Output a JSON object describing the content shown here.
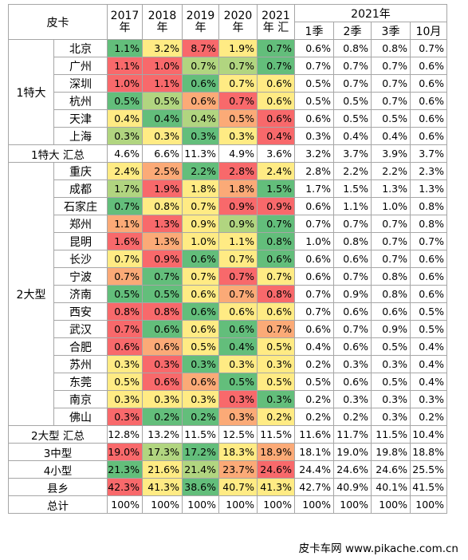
{
  "header": {
    "corner": "皮卡",
    "years": [
      "2017",
      "2018",
      "2019",
      "2020",
      "2021"
    ],
    "year_suffix": "年",
    "total_suffix": "汇",
    "year2021": "2021年",
    "periods": [
      "1季",
      "2季",
      "3季",
      "10月"
    ]
  },
  "colors": {
    "red": "#f8696b",
    "orange": "#fbaa77",
    "yellow": "#ffeb84",
    "lightgreen": "#b1d580",
    "green": "#63be7b"
  },
  "groups": [
    {
      "name": "1特大",
      "cities": [
        {
          "name": "北京",
          "years": [
            "1.1%",
            "3.2%",
            "8.7%",
            "1.9%",
            "0.7%"
          ],
          "colors": [
            "g",
            "y",
            "r",
            "y",
            "g"
          ],
          "periods": [
            "0.6%",
            "0.8%",
            "0.8%",
            "0.7%"
          ]
        },
        {
          "name": "广州",
          "years": [
            "1.1%",
            "1.0%",
            "0.7%",
            "0.7%",
            "0.7%"
          ],
          "colors": [
            "r",
            "r",
            "lg",
            "lg",
            "g"
          ],
          "periods": [
            "0.7%",
            "0.7%",
            "0.7%",
            "0.6%"
          ]
        },
        {
          "name": "深圳",
          "years": [
            "1.0%",
            "1.1%",
            "0.6%",
            "0.7%",
            "0.6%"
          ],
          "colors": [
            "r",
            "r",
            "g",
            "y",
            "y"
          ],
          "periods": [
            "0.5%",
            "0.7%",
            "0.7%",
            "0.6%"
          ]
        },
        {
          "name": "杭州",
          "years": [
            "0.5%",
            "0.5%",
            "0.6%",
            "0.7%",
            "0.6%"
          ],
          "colors": [
            "g",
            "lg",
            "o",
            "r",
            "y"
          ],
          "periods": [
            "0.5%",
            "0.5%",
            "0.7%",
            "0.6%"
          ]
        },
        {
          "name": "天津",
          "years": [
            "0.4%",
            "0.4%",
            "0.4%",
            "0.5%",
            "0.6%"
          ],
          "colors": [
            "y",
            "g",
            "lg",
            "o",
            "r"
          ],
          "periods": [
            "0.6%",
            "0.5%",
            "0.5%",
            "0.6%"
          ]
        },
        {
          "name": "上海",
          "years": [
            "0.3%",
            "0.3%",
            "0.3%",
            "0.3%",
            "0.4%"
          ],
          "colors": [
            "lg",
            "y",
            "g",
            "y",
            "r"
          ],
          "periods": [
            "0.3%",
            "0.4%",
            "0.4%",
            "0.6%"
          ]
        }
      ],
      "total_label": "1特大 汇总",
      "total": {
        "years": [
          "4.6%",
          "6.6%",
          "11.3%",
          "4.9%",
          "3.6%"
        ],
        "periods": [
          "3.2%",
          "3.7%",
          "3.9%",
          "3.7%"
        ]
      }
    },
    {
      "name": "2大型",
      "cities": [
        {
          "name": "重庆",
          "years": [
            "2.4%",
            "2.5%",
            "2.2%",
            "2.8%",
            "2.4%"
          ],
          "colors": [
            "y",
            "o",
            "g",
            "r",
            "y"
          ],
          "periods": [
            "2.8%",
            "2.2%",
            "2.2%",
            "2.3%"
          ]
        },
        {
          "name": "成都",
          "years": [
            "1.7%",
            "1.9%",
            "1.8%",
            "1.8%",
            "1.5%"
          ],
          "colors": [
            "lg",
            "r",
            "y",
            "o",
            "g"
          ],
          "periods": [
            "1.7%",
            "1.5%",
            "1.3%",
            "1.3%"
          ]
        },
        {
          "name": "石家庄",
          "years": [
            "0.7%",
            "0.8%",
            "0.7%",
            "0.9%",
            "0.9%"
          ],
          "colors": [
            "g",
            "y",
            "y",
            "r",
            "r"
          ],
          "periods": [
            "0.6%",
            "1.1%",
            "1.0%",
            "0.8%"
          ]
        },
        {
          "name": "郑州",
          "years": [
            "1.1%",
            "1.3%",
            "0.9%",
            "0.9%",
            "0.7%"
          ],
          "colors": [
            "o",
            "r",
            "y",
            "lg",
            "g"
          ],
          "periods": [
            "0.7%",
            "0.7%",
            "0.7%",
            "0.8%"
          ]
        },
        {
          "name": "昆明",
          "years": [
            "1.6%",
            "1.3%",
            "1.0%",
            "1.1%",
            "0.8%"
          ],
          "colors": [
            "r",
            "o",
            "y",
            "y",
            "g"
          ],
          "periods": [
            "1.0%",
            "0.8%",
            "0.7%",
            "0.7%"
          ]
        },
        {
          "name": "长沙",
          "years": [
            "0.7%",
            "0.9%",
            "0.6%",
            "0.7%",
            "0.6%"
          ],
          "colors": [
            "y",
            "r",
            "g",
            "y",
            "g"
          ],
          "periods": [
            "0.6%",
            "0.6%",
            "0.7%",
            "0.6%"
          ]
        },
        {
          "name": "宁波",
          "years": [
            "0.7%",
            "0.7%",
            "0.7%",
            "0.7%",
            "0.7%"
          ],
          "colors": [
            "o",
            "g",
            "y",
            "r",
            "y"
          ],
          "periods": [
            "0.6%",
            "0.7%",
            "0.8%",
            "0.6%"
          ]
        },
        {
          "name": "济南",
          "years": [
            "0.5%",
            "0.5%",
            "0.6%",
            "0.7%",
            "0.8%"
          ],
          "colors": [
            "g",
            "g",
            "y",
            "o",
            "r"
          ],
          "periods": [
            "0.7%",
            "0.9%",
            "0.8%",
            "0.6%"
          ]
        },
        {
          "name": "西安",
          "years": [
            "0.8%",
            "0.8%",
            "0.6%",
            "0.6%",
            "0.6%"
          ],
          "colors": [
            "r",
            "r",
            "g",
            "y",
            "y"
          ],
          "periods": [
            "0.7%",
            "0.6%",
            "0.6%",
            "0.5%"
          ]
        },
        {
          "name": "武汉",
          "years": [
            "0.7%",
            "0.6%",
            "0.6%",
            "0.6%",
            "0.7%"
          ],
          "colors": [
            "r",
            "g",
            "y",
            "g",
            "o"
          ],
          "periods": [
            "0.6%",
            "0.7%",
            "0.9%",
            "0.5%"
          ]
        },
        {
          "name": "合肥",
          "years": [
            "0.6%",
            "0.6%",
            "0.5%",
            "0.4%",
            "0.5%"
          ],
          "colors": [
            "r",
            "o",
            "y",
            "g",
            "y"
          ],
          "periods": [
            "0.4%",
            "0.6%",
            "0.5%",
            "0.4%"
          ]
        },
        {
          "name": "苏州",
          "years": [
            "0.3%",
            "0.3%",
            "0.3%",
            "0.3%",
            "0.3%"
          ],
          "colors": [
            "y",
            "r",
            "g",
            "y",
            "y"
          ],
          "periods": [
            "0.2%",
            "0.3%",
            "0.3%",
            "0.4%"
          ]
        },
        {
          "name": "东莞",
          "years": [
            "0.5%",
            "0.6%",
            "0.6%",
            "0.5%",
            "0.5%"
          ],
          "colors": [
            "y",
            "r",
            "o",
            "g",
            "y"
          ],
          "periods": [
            "0.5%",
            "0.6%",
            "0.5%",
            "0.4%"
          ]
        },
        {
          "name": "南京",
          "years": [
            "0.3%",
            "0.3%",
            "0.3%",
            "0.3%",
            "0.3%"
          ],
          "colors": [
            "y",
            "y",
            "y",
            "r",
            "g"
          ],
          "periods": [
            "0.2%",
            "0.3%",
            "0.3%",
            "0.3%"
          ]
        },
        {
          "name": "佛山",
          "years": [
            "0.3%",
            "0.2%",
            "0.2%",
            "0.3%",
            "0.2%"
          ],
          "colors": [
            "r",
            "g",
            "g",
            "o",
            "y"
          ],
          "periods": [
            "0.2%",
            "0.2%",
            "0.3%",
            "0.2%"
          ]
        }
      ],
      "total_label": "2大型 汇总",
      "total": {
        "years": [
          "12.8%",
          "13.2%",
          "11.5%",
          "12.5%",
          "11.5%"
        ],
        "periods": [
          "11.6%",
          "11.7%",
          "11.5%",
          "10.4%"
        ]
      }
    }
  ],
  "bottom_rows": [
    {
      "name": "3中型",
      "years": [
        "19.0%",
        "17.3%",
        "17.2%",
        "18.3%",
        "18.9%"
      ],
      "colors": [
        "r",
        "lg",
        "g",
        "y",
        "o"
      ],
      "periods": [
        "18.1%",
        "19.0%",
        "19.8%",
        "18.8%"
      ]
    },
    {
      "name": "4小型",
      "years": [
        "21.3%",
        "21.6%",
        "21.4%",
        "23.7%",
        "24.6%"
      ],
      "colors": [
        "g",
        "y",
        "lg",
        "o",
        "r"
      ],
      "periods": [
        "24.4%",
        "24.6%",
        "24.6%",
        "25.5%"
      ]
    },
    {
      "name": "县乡",
      "years": [
        "42.3%",
        "41.3%",
        "38.6%",
        "40.7%",
        "41.3%"
      ],
      "colors": [
        "r",
        "y",
        "g",
        "y",
        "y"
      ],
      "periods": [
        "42.7%",
        "40.9%",
        "40.1%",
        "41.5%"
      ]
    }
  ],
  "total_row": {
    "name": "总计",
    "years": [
      "100%",
      "100%",
      "100%",
      "100%",
      "100%"
    ],
    "periods": [
      "100%",
      "100%",
      "100%",
      "100%"
    ]
  },
  "footer": "皮卡车网  www.pikache.com.cn"
}
